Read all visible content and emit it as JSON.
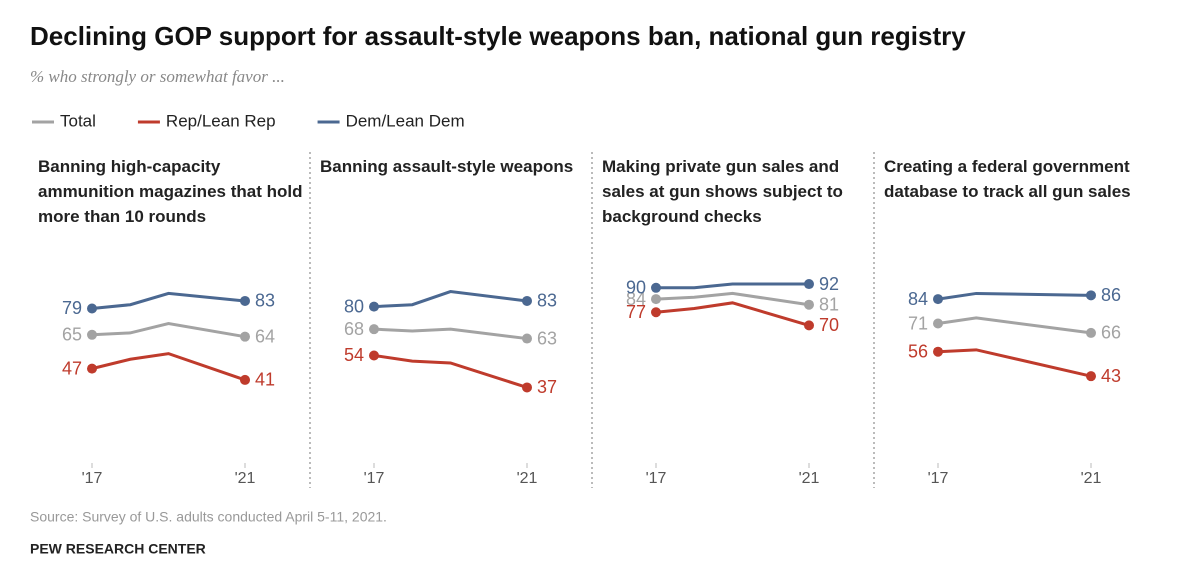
{
  "title": "Declining GOP support for assault-style weapons ban, national gun registry",
  "subtitle": "% who strongly or somewhat favor ...",
  "source": "Source: Survey of U.S. adults conducted April 5-11, 2021.",
  "credit": "PEW RESEARCH CENTER",
  "chart_data": [
    {
      "type": "line",
      "title": "Banning high-capacity ammunition magazines that hold more than 10 rounds",
      "x": [
        2017,
        2018,
        2019,
        2021
      ],
      "xlim": [
        2017,
        2021
      ],
      "xticks": [
        {
          "value": 2017,
          "label": "'17"
        },
        {
          "value": 2021,
          "label": "'21"
        }
      ],
      "ylim": [
        0,
        100
      ],
      "series": [
        {
          "name": "Total",
          "color": "#a3a3a3",
          "values": [
            65,
            66,
            71,
            64
          ]
        },
        {
          "name": "Rep/Lean Rep",
          "color": "#bf3b2c",
          "values": [
            47,
            52,
            55,
            41
          ]
        },
        {
          "name": "Dem/Lean Dem",
          "color": "#4b6891",
          "values": [
            79,
            81,
            87,
            83
          ]
        }
      ]
    },
    {
      "type": "line",
      "title": "Banning assault-style weapons",
      "x": [
        2017,
        2018,
        2019,
        2021
      ],
      "xlim": [
        2017,
        2021
      ],
      "xticks": [
        {
          "value": 2017,
          "label": "'17"
        },
        {
          "value": 2021,
          "label": "'21"
        }
      ],
      "ylim": [
        0,
        100
      ],
      "series": [
        {
          "name": "Total",
          "color": "#a3a3a3",
          "values": [
            68,
            67,
            68,
            63
          ]
        },
        {
          "name": "Rep/Lean Rep",
          "color": "#bf3b2c",
          "values": [
            54,
            51,
            50,
            37
          ]
        },
        {
          "name": "Dem/Lean Dem",
          "color": "#4b6891",
          "values": [
            80,
            81,
            88,
            83
          ]
        }
      ]
    },
    {
      "type": "line",
      "title": "Making private gun sales and sales at gun shows subject to background checks",
      "x": [
        2017,
        2018,
        2019,
        2021
      ],
      "xlim": [
        2017,
        2021
      ],
      "xticks": [
        {
          "value": 2017,
          "label": "'17"
        },
        {
          "value": 2021,
          "label": "'21"
        }
      ],
      "ylim": [
        0,
        100
      ],
      "series": [
        {
          "name": "Total",
          "color": "#a3a3a3",
          "values": [
            84,
            85,
            87,
            81
          ]
        },
        {
          "name": "Rep/Lean Rep",
          "color": "#bf3b2c",
          "values": [
            77,
            79,
            82,
            70
          ]
        },
        {
          "name": "Dem/Lean Dem",
          "color": "#4b6891",
          "values": [
            90,
            90,
            92,
            92
          ]
        }
      ]
    },
    {
      "type": "line",
      "title": "Creating a federal government database to track all gun sales",
      "x": [
        2017,
        2018,
        2021
      ],
      "xlim": [
        2017,
        2021
      ],
      "xticks": [
        {
          "value": 2017,
          "label": "'17"
        },
        {
          "value": 2021,
          "label": "'21"
        }
      ],
      "ylim": [
        0,
        100
      ],
      "series": [
        {
          "name": "Total",
          "color": "#a3a3a3",
          "values": [
            71,
            74,
            66
          ]
        },
        {
          "name": "Rep/Lean Rep",
          "color": "#bf3b2c",
          "values": [
            56,
            57,
            43
          ]
        },
        {
          "name": "Dem/Lean Dem",
          "color": "#4b6891",
          "values": [
            84,
            87,
            86
          ]
        }
      ]
    }
  ]
}
